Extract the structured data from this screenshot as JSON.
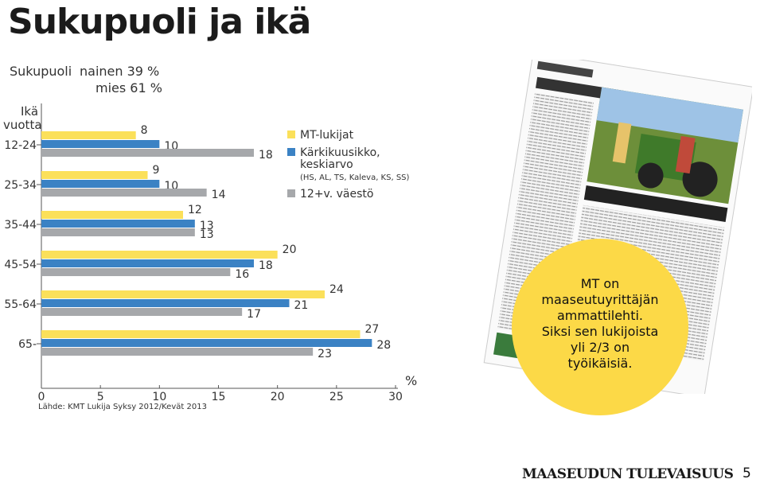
{
  "page": {
    "title": "Sukupuoli ja ikä",
    "gender_label": "Sukupuoli",
    "female_line": "nainen 39 %",
    "male_line": "mies 61 %",
    "age_label_1": "Ikä",
    "age_label_2": "vuotta",
    "source": "Lähde: KMT Lukija Syksy 2012/Kevät 2013",
    "callout": {
      "line1": "MT on",
      "line2": "maaseutuyrittäjän",
      "line3": "ammattilehti.",
      "line4": "Siksi sen lukijoista",
      "line5": "yli 2/3 on",
      "line6": "työikäisiä."
    },
    "footer_brand": "MAASEUDUN TULEVAISUUS",
    "page_number": "5"
  },
  "chart_data": {
    "type": "bar",
    "orientation": "horizontal",
    "categories": [
      "12-24",
      "25-34",
      "35-44",
      "45-54",
      "55-64",
      "65-"
    ],
    "series": [
      {
        "name": "MT-lukijat",
        "values": [
          8,
          9,
          12,
          20,
          24,
          27
        ],
        "color": "#fbe05a"
      },
      {
        "name": "Kärkikuusikko, keskiarvo",
        "subtitle": "(HS, AL, TS, Kaleva, KS, SS)",
        "values": [
          10,
          10,
          13,
          18,
          21,
          28
        ],
        "color": "#3b82c4"
      },
      {
        "name": "12+v. väestö",
        "values": [
          18,
          14,
          13,
          16,
          17,
          23
        ],
        "color": "#a6a8ab"
      }
    ],
    "x_ticks": [
      "0",
      "5",
      "10",
      "15",
      "20",
      "25",
      "30"
    ],
    "x_unit": "%",
    "xlim": [
      0,
      30
    ],
    "legend_position": "top-right",
    "grid": false
  }
}
